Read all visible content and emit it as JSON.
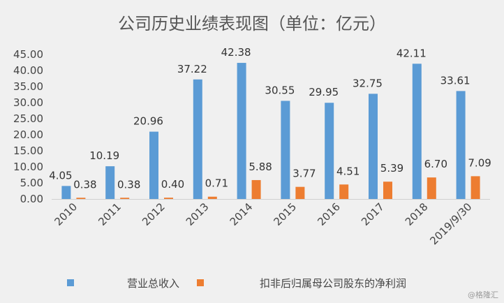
{
  "chart_data": {
    "type": "bar",
    "title": "公司历史业绩表现图（单位：亿元）",
    "categories": [
      "2010",
      "2011",
      "2012",
      "2013",
      "2014",
      "2015",
      "2016",
      "2017",
      "2018",
      "2019/9/30"
    ],
    "series": [
      {
        "name": "营业总收入",
        "values": [
          4.05,
          10.19,
          20.96,
          37.22,
          42.38,
          30.55,
          29.95,
          32.75,
          42.11,
          33.61
        ],
        "color": "#5b9bd5"
      },
      {
        "name": "扣非后归属母公司股东的净利润",
        "values": [
          0.38,
          0.38,
          0.4,
          0.71,
          5.88,
          3.77,
          4.51,
          5.39,
          6.7,
          7.09
        ],
        "color": "#ed7d31"
      }
    ],
    "ylim": [
      0,
      45
    ],
    "yticks": [
      "0.00",
      "5.00",
      "10.00",
      "15.00",
      "20.00",
      "25.00",
      "30.00",
      "35.00",
      "40.00",
      "45.00"
    ],
    "grid": false,
    "legend": "bottom"
  },
  "watermark": "@格隆汇"
}
